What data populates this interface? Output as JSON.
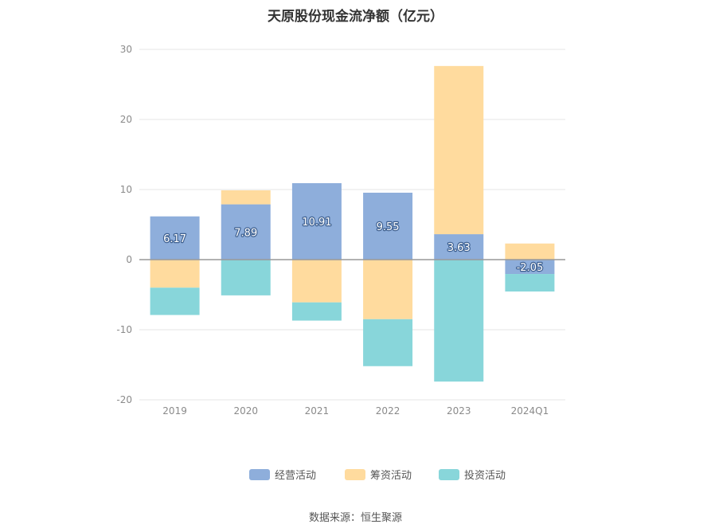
{
  "title": "天原股份现金流净额（亿元）",
  "source": "数据来源：恒生聚源",
  "colors": {
    "operating": "#8eaedb",
    "financing": "#ffdb9e",
    "investing": "#88d6da",
    "grid": "#e6e6e6",
    "axis_zero": "#999999",
    "tick_text": "#8a8a8a"
  },
  "chart_data": {
    "type": "bar",
    "stacked": true,
    "title": "天原股份现金流净额（亿元）",
    "categories": [
      "2019",
      "2020",
      "2021",
      "2022",
      "2023",
      "2024Q1"
    ],
    "ylim": [
      -20,
      30
    ],
    "yticks": [
      30,
      20,
      10,
      0,
      -10,
      -20
    ],
    "grid": true,
    "legend_position": "bottom",
    "series": [
      {
        "name": "经营活动",
        "color": "#8eaedb",
        "values": [
          6.17,
          7.89,
          10.91,
          9.55,
          3.63,
          -2.05
        ],
        "labels": [
          "6.17",
          "7.89",
          "10.91",
          "9.55",
          "3.63",
          "-2.05"
        ]
      },
      {
        "name": "筹资活动",
        "color": "#ffdb9e",
        "values": [
          -4.0,
          2.0,
          -6.1,
          -8.5,
          24.0,
          2.3
        ]
      },
      {
        "name": "投资活动",
        "color": "#88d6da",
        "values": [
          -3.9,
          -5.1,
          -2.6,
          -6.7,
          -17.4,
          -2.5
        ]
      }
    ]
  }
}
